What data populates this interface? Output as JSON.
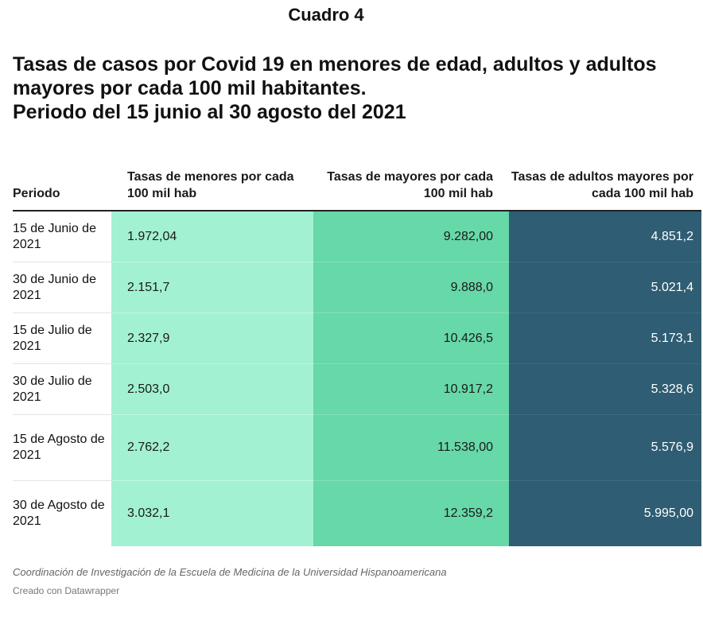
{
  "doc_label": "Cuadro 4",
  "title_lines": [
    "Tasas de casos por Covid 19 en menores de edad, adultos y adultos",
    "mayores por cada 100 mil habitantes.",
    "Periodo del 15 junio al 30 agosto del 2021"
  ],
  "table": {
    "headers": {
      "periodo": "Periodo",
      "menores": "Tasas de menores por cada 100 mil hab",
      "mayores": "Tasas de mayores por cada 100 mil hab",
      "adultos": "Tasas de adultos mayores por cada 100 mil hab"
    },
    "rows": [
      {
        "periodo": "15 de Junio de 2021",
        "menores": "1.972,04",
        "mayores": "9.282,00",
        "adultos": "4.851,2"
      },
      {
        "periodo": "30 de Junio de 2021",
        "menores": "2.151,7",
        "mayores": "9.888,0",
        "adultos": "5.021,4"
      },
      {
        "periodo": "15 de Julio de 2021",
        "menores": "2.327,9",
        "mayores": "10.426,5",
        "adultos": "5.173,1"
      },
      {
        "periodo": "30 de Julio de 2021",
        "menores": "2.503,0",
        "mayores": "10.917,2",
        "adultos": "5.328,6"
      },
      {
        "periodo": "15 de Agosto de 2021",
        "menores": "2.762,2",
        "mayores": "11.538,00",
        "adultos": "5.576,9"
      },
      {
        "periodo": "30 de Agosto de 2021",
        "menores": "3.032,1",
        "mayores": "12.359,2",
        "adultos": "5.995,00"
      }
    ]
  },
  "source": "Coordinación de Investigación de la Escuela de Medicina de la Universidad Hispanoamericana",
  "credit": "Creado con Datawrapper",
  "colors": {
    "menores_column": "#a2f1d2",
    "mayores_column": "#67d8a8",
    "adultos_column": "#2f5d73"
  }
}
